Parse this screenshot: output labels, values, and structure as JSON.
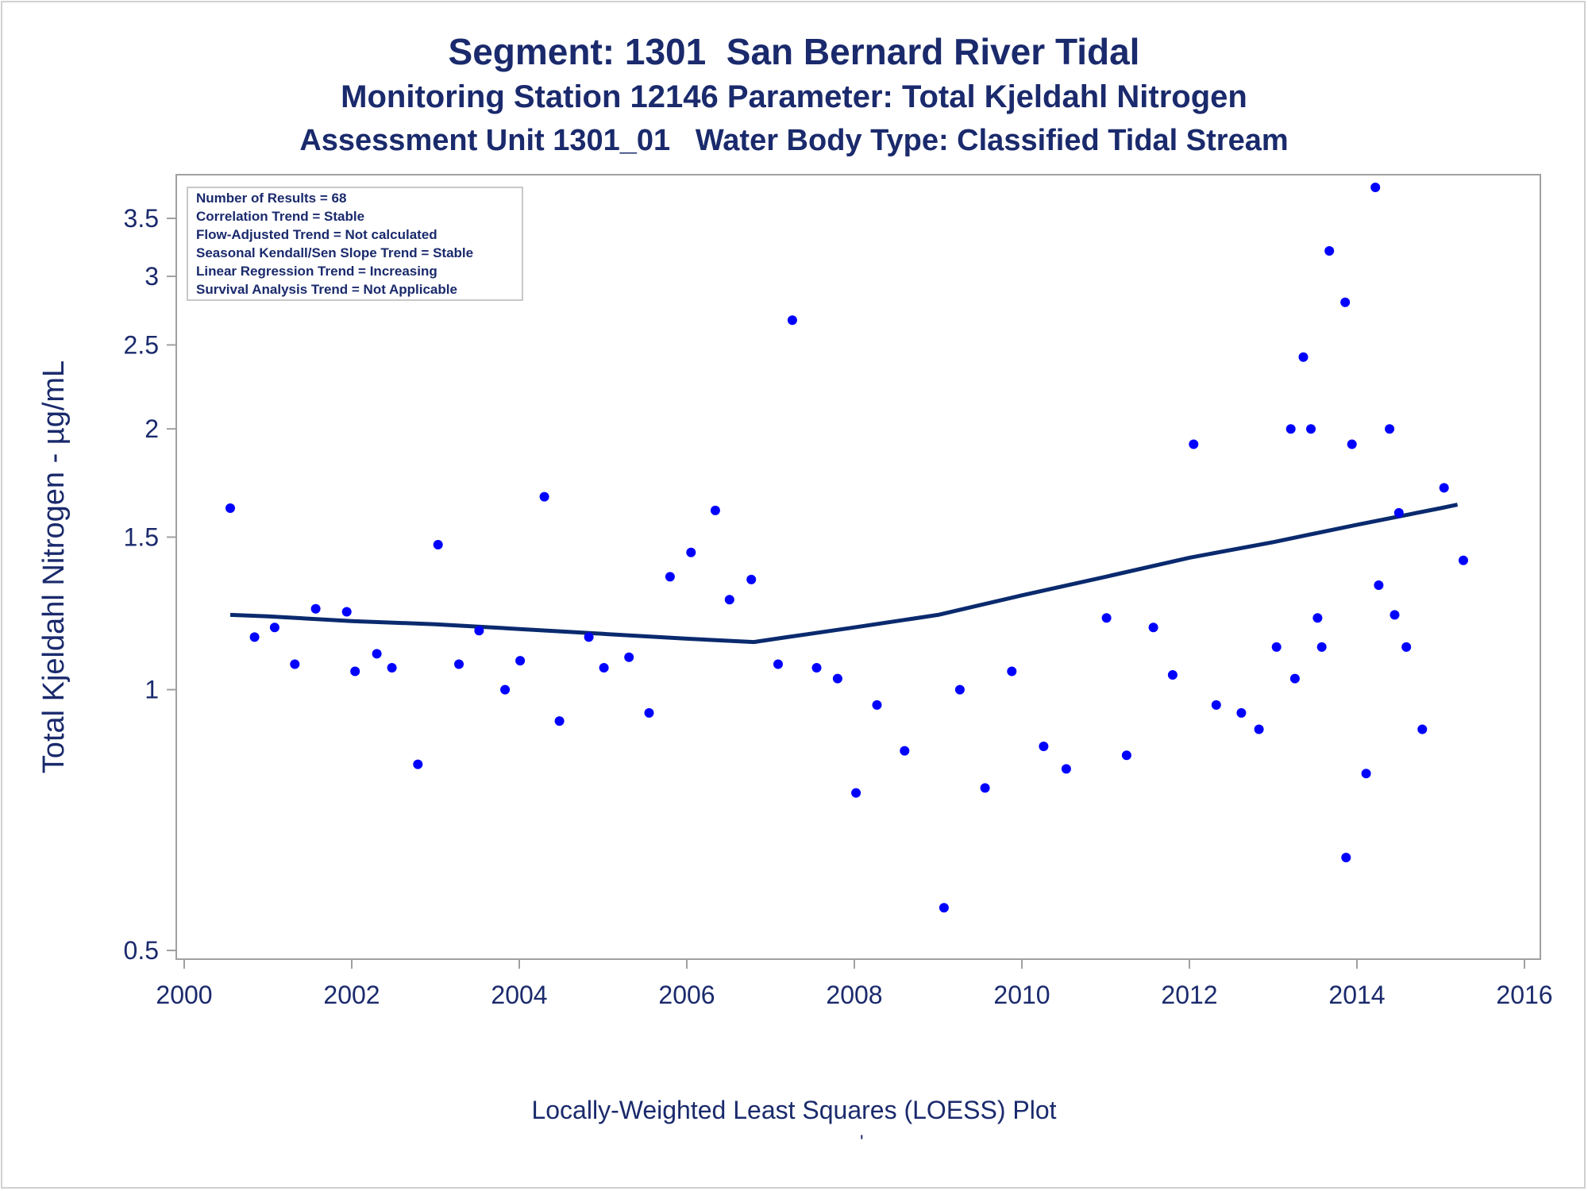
{
  "titles": {
    "line1": "Segment: 1301  San Bernard River Tidal",
    "line2": "Monitoring Station 12146 Parameter: Total Kjeldahl Nitrogen",
    "line3": "Assessment Unit 1301_01   Water Body Type: Classified Tidal Stream"
  },
  "footnote": "Locally-Weighted Least Squares (LOESS) Plot",
  "footnote_mark": "'",
  "stats_box": [
    "Number of Results = 68",
    "Correlation Trend = Stable",
    "Flow-Adjusted Trend = Not calculated",
    "Seasonal Kendall/Sen Slope Trend = Stable",
    "Linear Regression Trend = Increasing",
    "Survival Analysis Trend = Not Applicable"
  ],
  "colors": {
    "points": "#0000ff",
    "loess_line": "#0a2a6e",
    "text": "#1a2a6c",
    "axis": "#a0a0a0"
  },
  "chart_data": {
    "type": "scatter",
    "xlabel": "",
    "ylabel": "Total Kjeldahl Nitrogen -  µg/mL",
    "xlim": [
      2000,
      2016
    ],
    "ylim": [
      0.49,
      3.9
    ],
    "y_scale": "log",
    "x_ticks": [
      2000,
      2002,
      2004,
      2006,
      2008,
      2010,
      2012,
      2014,
      2016
    ],
    "x_tick_labels": [
      "2000",
      "2002",
      "2004",
      "2006",
      "2008",
      "2010",
      "2012",
      "2014",
      "2016"
    ],
    "y_ticks": [
      0.5,
      1,
      1.5,
      2,
      2.5,
      3,
      3.5
    ],
    "y_tick_labels": [
      "0.5",
      "1",
      "1.5",
      "2",
      "2.5",
      "3",
      "3.5"
    ],
    "grid": false,
    "legend": "top-left",
    "points": [
      {
        "x": 2000.55,
        "y": 1.62
      },
      {
        "x": 2000.84,
        "y": 1.15
      },
      {
        "x": 2001.08,
        "y": 1.18
      },
      {
        "x": 2001.32,
        "y": 1.07
      },
      {
        "x": 2001.57,
        "y": 1.24
      },
      {
        "x": 2001.94,
        "y": 1.23
      },
      {
        "x": 2002.04,
        "y": 1.05
      },
      {
        "x": 2002.3,
        "y": 1.1
      },
      {
        "x": 2002.48,
        "y": 1.06
      },
      {
        "x": 2002.79,
        "y": 0.82
      },
      {
        "x": 2003.03,
        "y": 1.47
      },
      {
        "x": 2003.28,
        "y": 1.07
      },
      {
        "x": 2003.52,
        "y": 1.17
      },
      {
        "x": 2003.83,
        "y": 1.0
      },
      {
        "x": 2004.01,
        "y": 1.08
      },
      {
        "x": 2004.3,
        "y": 1.67
      },
      {
        "x": 2004.48,
        "y": 0.92
      },
      {
        "x": 2004.83,
        "y": 1.15
      },
      {
        "x": 2005.01,
        "y": 1.06
      },
      {
        "x": 2005.31,
        "y": 1.09
      },
      {
        "x": 2005.55,
        "y": 0.94
      },
      {
        "x": 2005.8,
        "y": 1.35
      },
      {
        "x": 2006.05,
        "y": 1.44
      },
      {
        "x": 2006.34,
        "y": 1.61
      },
      {
        "x": 2006.51,
        "y": 1.27
      },
      {
        "x": 2006.77,
        "y": 1.34
      },
      {
        "x": 2007.09,
        "y": 1.07
      },
      {
        "x": 2007.26,
        "y": 2.67
      },
      {
        "x": 2007.55,
        "y": 1.06
      },
      {
        "x": 2007.8,
        "y": 1.03
      },
      {
        "x": 2008.02,
        "y": 0.76
      },
      {
        "x": 2008.27,
        "y": 0.96
      },
      {
        "x": 2008.6,
        "y": 0.85
      },
      {
        "x": 2009.07,
        "y": 0.56
      },
      {
        "x": 2009.26,
        "y": 1.0
      },
      {
        "x": 2009.56,
        "y": 0.77
      },
      {
        "x": 2009.88,
        "y": 1.05
      },
      {
        "x": 2010.26,
        "y": 0.86
      },
      {
        "x": 2010.53,
        "y": 0.81
      },
      {
        "x": 2011.01,
        "y": 1.21
      },
      {
        "x": 2011.25,
        "y": 0.84
      },
      {
        "x": 2011.57,
        "y": 1.18
      },
      {
        "x": 2011.8,
        "y": 1.04
      },
      {
        "x": 2012.05,
        "y": 1.92
      },
      {
        "x": 2012.32,
        "y": 0.96
      },
      {
        "x": 2012.62,
        "y": 0.94
      },
      {
        "x": 2012.83,
        "y": 0.9
      },
      {
        "x": 2013.04,
        "y": 1.12
      },
      {
        "x": 2013.21,
        "y": 2.0
      },
      {
        "x": 2013.26,
        "y": 1.03
      },
      {
        "x": 2013.36,
        "y": 2.42
      },
      {
        "x": 2013.45,
        "y": 2.0
      },
      {
        "x": 2013.53,
        "y": 1.21
      },
      {
        "x": 2013.58,
        "y": 1.12
      },
      {
        "x": 2013.67,
        "y": 3.21
      },
      {
        "x": 2013.86,
        "y": 2.8
      },
      {
        "x": 2013.87,
        "y": 0.64
      },
      {
        "x": 2013.94,
        "y": 1.92
      },
      {
        "x": 2014.11,
        "y": 0.8
      },
      {
        "x": 2014.22,
        "y": 3.8
      },
      {
        "x": 2014.26,
        "y": 1.32
      },
      {
        "x": 2014.39,
        "y": 2.0
      },
      {
        "x": 2014.45,
        "y": 1.22
      },
      {
        "x": 2014.5,
        "y": 1.6
      },
      {
        "x": 2014.59,
        "y": 1.12
      },
      {
        "x": 2014.78,
        "y": 0.9
      },
      {
        "x": 2015.04,
        "y": 1.71
      },
      {
        "x": 2015.27,
        "y": 1.41
      }
    ],
    "loess": [
      {
        "x": 2000.55,
        "y": 1.22
      },
      {
        "x": 2001.0,
        "y": 1.215
      },
      {
        "x": 2002.0,
        "y": 1.2
      },
      {
        "x": 2003.0,
        "y": 1.19
      },
      {
        "x": 2004.0,
        "y": 1.175
      },
      {
        "x": 2005.0,
        "y": 1.16
      },
      {
        "x": 2006.0,
        "y": 1.145
      },
      {
        "x": 2006.8,
        "y": 1.135
      },
      {
        "x": 2007.2,
        "y": 1.15
      },
      {
        "x": 2008.0,
        "y": 1.18
      },
      {
        "x": 2009.0,
        "y": 1.22
      },
      {
        "x": 2010.0,
        "y": 1.285
      },
      {
        "x": 2011.0,
        "y": 1.35
      },
      {
        "x": 2012.0,
        "y": 1.42
      },
      {
        "x": 2013.0,
        "y": 1.48
      },
      {
        "x": 2014.0,
        "y": 1.55
      },
      {
        "x": 2015.0,
        "y": 1.62
      },
      {
        "x": 2015.2,
        "y": 1.635
      }
    ]
  }
}
